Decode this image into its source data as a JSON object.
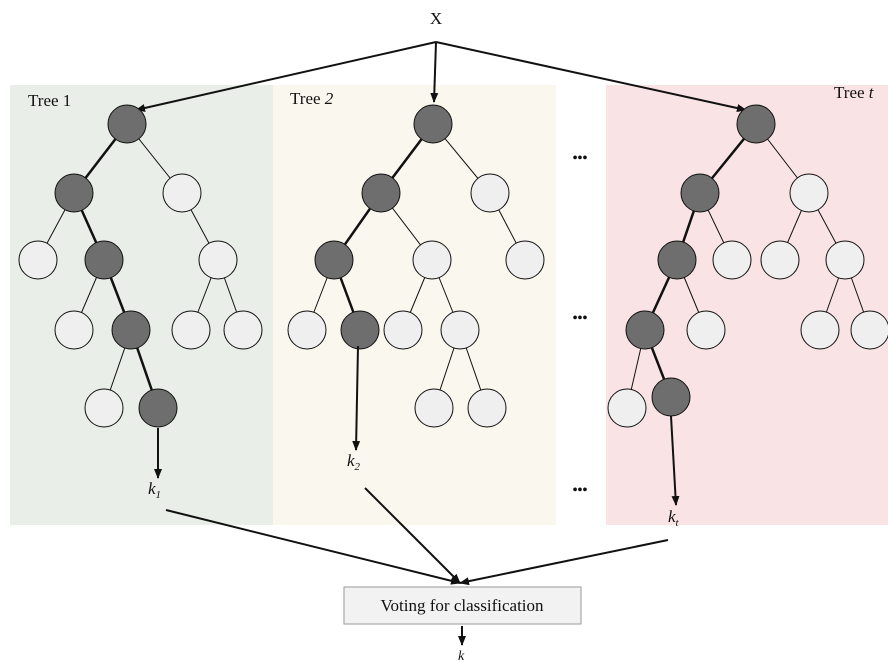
{
  "input_label": "X",
  "panels": [
    {
      "title_prefix": "Tree ",
      "title_index": "1",
      "output_var": "k",
      "output_sub": "1",
      "bg": "#e9eee8"
    },
    {
      "title_prefix": "Tree ",
      "title_index": "2",
      "output_var": "k",
      "output_sub": "2",
      "bg": "#faf7ee"
    },
    {
      "title_prefix": "Tree ",
      "title_index": "t",
      "output_var": "k",
      "output_sub": "t",
      "bg": "#f9e3e5"
    }
  ],
  "ellipsis": "•••",
  "voting_label": "Voting for classification",
  "final_output": "k",
  "colors": {
    "path_node": "#6e6e6e",
    "other_node": "#efefef",
    "stroke": "#111111"
  }
}
